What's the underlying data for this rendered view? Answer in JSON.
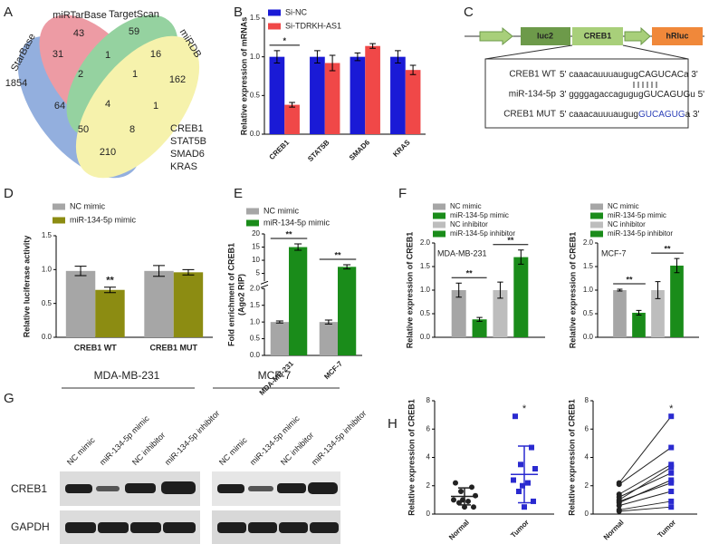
{
  "panel_labels": [
    "A",
    "B",
    "C",
    "D",
    "E",
    "F",
    "G",
    "H"
  ],
  "venn": {
    "sets": [
      "StarBase",
      "miRTarBase",
      "TargetScan",
      "miRDB"
    ],
    "counts": [
      43,
      59,
      31,
      1,
      16,
      1854,
      2,
      1,
      162,
      64,
      4,
      1,
      50,
      8,
      210
    ],
    "genes": [
      "CREB1",
      "STAT5B",
      "SMAD6",
      "KRAS"
    ]
  },
  "construct": {
    "elements": [
      "luc2",
      "CREB1",
      "hRluc"
    ],
    "rows": [
      {
        "name": "CREB1 WT",
        "seq": [
          "5' caaacauuuaugug",
          "CAGUCAC",
          "a 3'"
        ]
      },
      {
        "name": "miR-134-5p",
        "seq": [
          "3' ggggagaccagugug",
          "GUCAGUG",
          "u 5'"
        ]
      },
      {
        "name": "CREB1 MUT",
        "seq": [
          "5' caaacauuuaugug",
          "GUCAGUG",
          "a 3'"
        ],
        "highlight_color": "#2b3fb8"
      }
    ]
  },
  "blot": {
    "groups": [
      {
        "name": "MDA-MB-231",
        "lanes": [
          "NC mimic",
          "miR-134-5p mimic",
          "NC inhibitor",
          "miR-134-5p inhibitor"
        ]
      },
      {
        "name": "MCF-7",
        "lanes": [
          "NC mimic",
          "miR-134-5p mimic",
          "NC inhibitor",
          "miR-134-5p inhibitor"
        ]
      }
    ],
    "rows": [
      "CREB1",
      "GAPDH"
    ]
  },
  "chart_data": [
    {
      "type": "bar",
      "ylabel": "Relative expression of mRNAs",
      "categories": [
        "CREB1",
        "STAT5B",
        "SMAD6",
        "KRAS"
      ],
      "series": [
        {
          "name": "Si-NC",
          "color": "#1a1ad6",
          "values": [
            1,
            1,
            1,
            1
          ],
          "errors": [
            0.08,
            0.08,
            0.05,
            0.08
          ]
        },
        {
          "name": "Si-TDRKH-AS1",
          "color": "#f04848",
          "values": [
            0.38,
            0.92,
            1.14,
            0.83
          ],
          "errors": [
            0.03,
            0.1,
            0.03,
            0.06
          ]
        }
      ],
      "ylim": [
        0,
        1.5
      ],
      "yticks": [
        {
          "value": 0,
          "label": "0.0"
        },
        0.5,
        {
          "value": 1,
          "label": "1.0"
        },
        1.5
      ],
      "annotations": [
        "*"
      ],
      "legend": "top-left"
    },
    {
      "type": "bar",
      "ylabel": "Relative luciferase activity",
      "categories": [
        "CREB1 WT",
        "CREB1 MUT"
      ],
      "series": [
        {
          "name": "NC mimic",
          "color": "#a6a6a6",
          "values": [
            0.98,
            0.98
          ],
          "errors": [
            0.07,
            0.08
          ]
        },
        {
          "name": "miR-134-5p mimic",
          "color": "#8c8c12",
          "values": [
            0.7,
            0.96
          ],
          "errors": [
            0.04,
            0.04
          ]
        }
      ],
      "ylim": [
        0,
        1.5
      ],
      "yticks": [
        {
          "value": 0,
          "label": "0.0"
        },
        0.5,
        {
          "value": 1,
          "label": "1.0"
        },
        1.5
      ],
      "annotations": [
        "**"
      ],
      "legend": "top"
    },
    {
      "type": "bar",
      "ylabel": [
        "Fold enrichment of CREB1",
        "(Ago2 RIP)"
      ],
      "categories": [
        "MDA-MB-231",
        "MCF-7"
      ],
      "series": [
        {
          "name": "NC mimic",
          "color": "#a6a6a6",
          "values": [
            1,
            1
          ],
          "errors": [
            0.03,
            0.06
          ]
        },
        {
          "name": "miR-134-5p mimic",
          "color": "#1a8c1a",
          "values": [
            15,
            7.5
          ],
          "errors": [
            1.2,
            0.8
          ]
        }
      ],
      "ylim": [
        0,
        20
      ],
      "ybreak": 2,
      "yticks": [
        {
          "value": 0,
          "label": "0.0"
        },
        0.5,
        {
          "value": 1,
          "label": "1.0"
        },
        1.5,
        {
          "value": 2,
          "label": "2.0"
        },
        5,
        10,
        15,
        20
      ],
      "annotations": [
        "**",
        "**"
      ],
      "legend": "top"
    },
    {
      "type": "bar",
      "title": "MDA-MB-231",
      "ylabel": "Relative expression of CREB1",
      "categories": [
        null
      ],
      "series": [
        {
          "name": "NC mimic",
          "color": "#a6a6a6",
          "values": [
            1
          ],
          "errors": [
            0.15
          ]
        },
        {
          "name": "miR-134-5p mimic",
          "color": "#1a8c1a",
          "values": [
            0.38
          ],
          "errors": [
            0.04
          ]
        },
        {
          "name": "NC inhibitor",
          "color": "#bdbdbd",
          "values": [
            1
          ],
          "errors": [
            0.17
          ]
        },
        {
          "name": "miR-134-5p inhibitor",
          "color": "#1a8c1a",
          "values": [
            1.7
          ],
          "errors": [
            0.15
          ]
        }
      ],
      "ylim": [
        0,
        2
      ],
      "yticks": [
        {
          "value": 0,
          "label": "0.0"
        },
        0.5,
        {
          "value": 1,
          "label": "1.0"
        },
        1.5,
        {
          "value": 2,
          "label": "2.0"
        }
      ],
      "annotations": [
        "**",
        "**"
      ],
      "legend": "top"
    },
    {
      "type": "bar",
      "title": "MCF-7",
      "ylabel": "Relative expression of CREB1",
      "categories": [
        null
      ],
      "series": [
        {
          "name": "NC mimic",
          "color": "#a6a6a6",
          "values": [
            1
          ],
          "errors": [
            0.02
          ]
        },
        {
          "name": "miR-134-5p mimic",
          "color": "#1a8c1a",
          "values": [
            0.52
          ],
          "errors": [
            0.05
          ]
        },
        {
          "name": "NC inhibitor",
          "color": "#bdbdbd",
          "values": [
            1
          ],
          "errors": [
            0.18
          ]
        },
        {
          "name": "miR-134-5p inhibitor",
          "color": "#1a8c1a",
          "values": [
            1.52
          ],
          "errors": [
            0.15
          ]
        }
      ],
      "ylim": [
        0,
        2
      ],
      "yticks": [
        {
          "value": 0,
          "label": "0.0"
        },
        0.5,
        {
          "value": 1,
          "label": "1.0"
        },
        1.5,
        {
          "value": 2,
          "label": "2.0"
        }
      ],
      "annotations": [
        "**",
        "**"
      ],
      "legend": "top"
    },
    {
      "type": "dot",
      "ylabel": "Relative expression of CREB1",
      "categories": [
        "Normal",
        "Tumor"
      ],
      "colors": [
        "#222222",
        "#2a2ad0"
      ],
      "points": [
        [
          2.2,
          1.9,
          1.6,
          1.3,
          1,
          0.9,
          0.8,
          0.5,
          0.5,
          1
        ],
        [
          6.9,
          4.7,
          3.5,
          3.2,
          2.4,
          2.2,
          1.6,
          0.9,
          0.5,
          2
        ]
      ],
      "means": [
        1.25,
        2.8
      ],
      "sds": [
        0.6,
        2
      ],
      "ylim": [
        0,
        8
      ],
      "yticks": [
        0,
        2,
        4,
        6,
        8
      ],
      "annotations": [
        "*"
      ]
    },
    {
      "type": "paired",
      "ylabel": "Relative expression of CREB1",
      "categories": [
        "Normal",
        "Tumor"
      ],
      "colors": [
        "#222222",
        "#2a2ad0"
      ],
      "points": [
        [
          2.2,
          2.1,
          1.4,
          1,
          0.8,
          0.9,
          0.6,
          0.3,
          0.2,
          1.2
        ],
        [
          6.9,
          4.7,
          3.5,
          3.3,
          2.4,
          2.2,
          1.6,
          0.9,
          0.5,
          2.9
        ]
      ],
      "ylim": [
        0,
        8
      ],
      "yticks": [
        0,
        2,
        4,
        6,
        8
      ],
      "annotations": [
        "*"
      ]
    }
  ]
}
